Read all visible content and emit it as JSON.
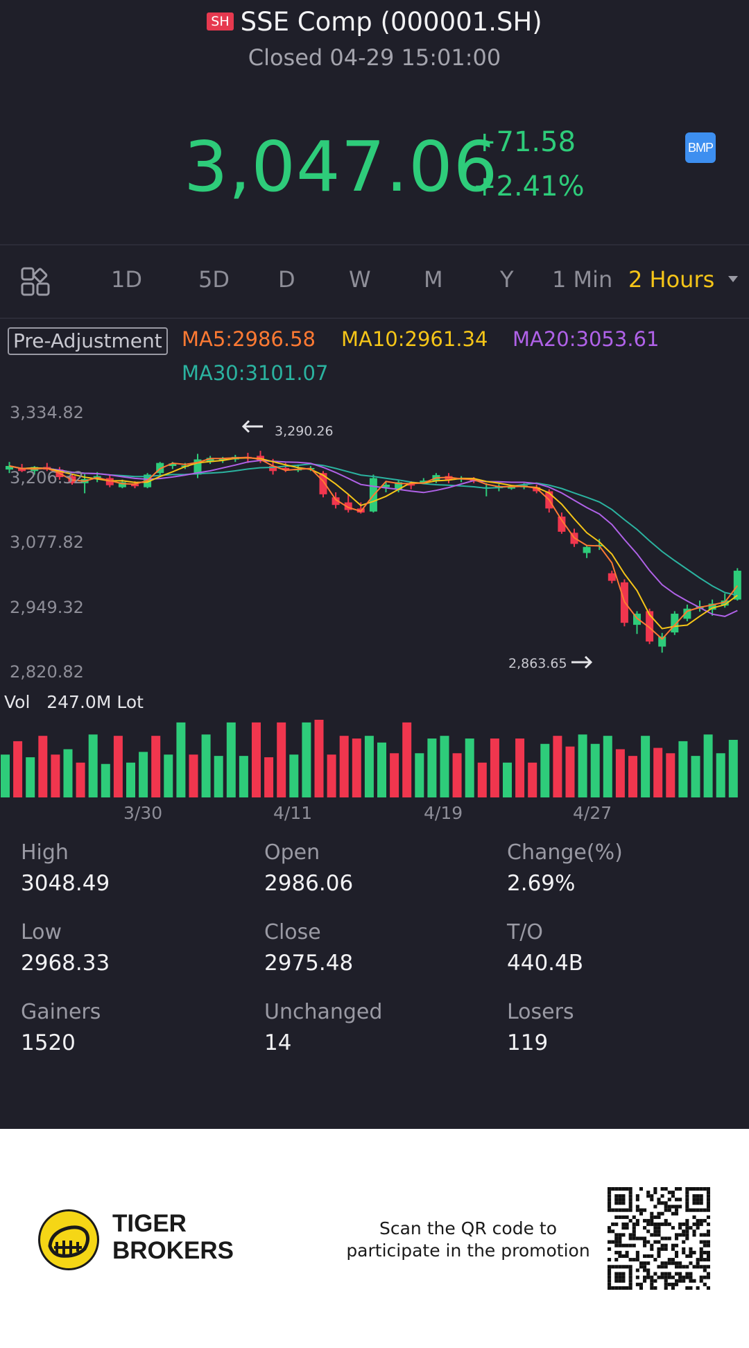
{
  "header": {
    "exchange_badge": "SH",
    "title": "SSE Comp (000001.SH)",
    "status": "Closed 04-29 15:01:00"
  },
  "quote": {
    "price": "3,047.06",
    "change": "+71.58",
    "change_pct": "+2.41%",
    "bmp_label": "BMP",
    "color_up": "#2ecc7a",
    "color_down": "#f0364e"
  },
  "tabs": {
    "items": [
      "1D",
      "5D",
      "D",
      "W",
      "M",
      "Y",
      "1 Min",
      "2 Hours"
    ],
    "active": "2 Hours",
    "icon": "grid-icon",
    "dropdown_icon": "caret-down-icon"
  },
  "indicators": {
    "adjustment": "Pre-Adjustment",
    "ma5": "MA5:2986.58",
    "ma10": "MA10:2961.34",
    "ma20": "MA20:3053.61",
    "ma30": "MA30:3101.07",
    "colors": {
      "ma5": "#ff7a33",
      "ma10": "#f5c518",
      "ma20": "#b062e8",
      "ma30": "#2bb3a0"
    }
  },
  "chart_data": {
    "type": "candlestick",
    "y_ticks": [
      "3,334.82",
      "3,206.32",
      "3,077.82",
      "2,949.32",
      "2,820.82"
    ],
    "ylim": [
      2820.82,
      3334.82
    ],
    "x_ticks": [
      "3/30",
      "4/11",
      "4/19",
      "4/27"
    ],
    "high_label": "3,290.26",
    "low_label": "2,863.65",
    "volume_label": "Vol",
    "volume_value": "247.0M Lot",
    "candles": [
      {
        "o": 3225,
        "h": 3240,
        "l": 3218,
        "c": 3232
      },
      {
        "o": 3228,
        "h": 3236,
        "l": 3220,
        "c": 3222
      },
      {
        "o": 3222,
        "h": 3232,
        "l": 3215,
        "c": 3230
      },
      {
        "o": 3230,
        "h": 3238,
        "l": 3222,
        "c": 3225
      },
      {
        "o": 3225,
        "h": 3230,
        "l": 3205,
        "c": 3210
      },
      {
        "o": 3212,
        "h": 3216,
        "l": 3195,
        "c": 3198
      },
      {
        "o": 3198,
        "h": 3216,
        "l": 3178,
        "c": 3206
      },
      {
        "o": 3206,
        "h": 3220,
        "l": 3200,
        "c": 3212
      },
      {
        "o": 3208,
        "h": 3214,
        "l": 3190,
        "c": 3194
      },
      {
        "o": 3190,
        "h": 3205,
        "l": 3188,
        "c": 3200
      },
      {
        "o": 3196,
        "h": 3202,
        "l": 3188,
        "c": 3192
      },
      {
        "o": 3190,
        "h": 3218,
        "l": 3188,
        "c": 3215
      },
      {
        "o": 3218,
        "h": 3240,
        "l": 3214,
        "c": 3238
      },
      {
        "o": 3232,
        "h": 3240,
        "l": 3226,
        "c": 3237
      },
      {
        "o": 3232,
        "h": 3238,
        "l": 3226,
        "c": 3233
      },
      {
        "o": 3215,
        "h": 3256,
        "l": 3208,
        "c": 3245
      },
      {
        "o": 3240,
        "h": 3252,
        "l": 3236,
        "c": 3248
      },
      {
        "o": 3244,
        "h": 3250,
        "l": 3238,
        "c": 3246
      },
      {
        "o": 3245,
        "h": 3254,
        "l": 3240,
        "c": 3250
      },
      {
        "o": 3250,
        "h": 3258,
        "l": 3238,
        "c": 3248
      },
      {
        "o": 3252,
        "h": 3262,
        "l": 3238,
        "c": 3242
      },
      {
        "o": 3232,
        "h": 3246,
        "l": 3215,
        "c": 3222
      },
      {
        "o": 3228,
        "h": 3238,
        "l": 3220,
        "c": 3225
      },
      {
        "o": 3225,
        "h": 3235,
        "l": 3220,
        "c": 3226
      },
      {
        "o": 3228,
        "h": 3232,
        "l": 3222,
        "c": 3228
      },
      {
        "o": 3218,
        "h": 3222,
        "l": 3170,
        "c": 3176
      },
      {
        "o": 3170,
        "h": 3180,
        "l": 3148,
        "c": 3155
      },
      {
        "o": 3160,
        "h": 3176,
        "l": 3140,
        "c": 3145
      },
      {
        "o": 3148,
        "h": 3160,
        "l": 3138,
        "c": 3140
      },
      {
        "o": 3142,
        "h": 3215,
        "l": 3140,
        "c": 3208
      },
      {
        "o": 3190,
        "h": 3202,
        "l": 3180,
        "c": 3195
      },
      {
        "o": 3185,
        "h": 3205,
        "l": 3180,
        "c": 3200
      },
      {
        "o": 3196,
        "h": 3202,
        "l": 3186,
        "c": 3194
      },
      {
        "o": 3198,
        "h": 3208,
        "l": 3196,
        "c": 3203
      },
      {
        "o": 3202,
        "h": 3218,
        "l": 3198,
        "c": 3214
      },
      {
        "o": 3212,
        "h": 3218,
        "l": 3198,
        "c": 3205
      },
      {
        "o": 3205,
        "h": 3212,
        "l": 3200,
        "c": 3208
      },
      {
        "o": 3205,
        "h": 3210,
        "l": 3198,
        "c": 3202
      },
      {
        "o": 3188,
        "h": 3198,
        "l": 3172,
        "c": 3190
      },
      {
        "o": 3188,
        "h": 3196,
        "l": 3182,
        "c": 3192
      },
      {
        "o": 3188,
        "h": 3194,
        "l": 3185,
        "c": 3190
      },
      {
        "o": 3190,
        "h": 3198,
        "l": 3186,
        "c": 3194
      },
      {
        "o": 3190,
        "h": 3195,
        "l": 3178,
        "c": 3182
      },
      {
        "o": 3182,
        "h": 3186,
        "l": 3140,
        "c": 3148
      },
      {
        "o": 3132,
        "h": 3140,
        "l": 3098,
        "c": 3102
      },
      {
        "o": 3100,
        "h": 3108,
        "l": 3072,
        "c": 3078
      },
      {
        "o": 3060,
        "h": 3075,
        "l": 3050,
        "c": 3072
      },
      {
        "o": 3075,
        "h": 3088,
        "l": 3066,
        "c": 3076
      },
      {
        "o": 3020,
        "h": 3025,
        "l": 3000,
        "c": 3005
      },
      {
        "o": 3002,
        "h": 3008,
        "l": 2915,
        "c": 2922
      },
      {
        "o": 2918,
        "h": 2945,
        "l": 2900,
        "c": 2940
      },
      {
        "o": 2945,
        "h": 2950,
        "l": 2880,
        "c": 2885
      },
      {
        "o": 2875,
        "h": 2902,
        "l": 2863,
        "c": 2895
      },
      {
        "o": 2903,
        "h": 2945,
        "l": 2898,
        "c": 2940
      },
      {
        "o": 2930,
        "h": 2958,
        "l": 2925,
        "c": 2950
      },
      {
        "o": 2950,
        "h": 2966,
        "l": 2944,
        "c": 2955
      },
      {
        "o": 2948,
        "h": 2968,
        "l": 2936,
        "c": 2960
      },
      {
        "o": 2956,
        "h": 2980,
        "l": 2952,
        "c": 2966
      },
      {
        "o": 2968,
        "h": 3030,
        "l": 2966,
        "c": 3025
      }
    ],
    "volumes": [
      {
        "v": 3.2,
        "up": true
      },
      {
        "v": 4.2,
        "up": false
      },
      {
        "v": 3.0,
        "up": true
      },
      {
        "v": 4.6,
        "up": false
      },
      {
        "v": 3.2,
        "up": false
      },
      {
        "v": 3.6,
        "up": true
      },
      {
        "v": 2.6,
        "up": false
      },
      {
        "v": 4.7,
        "up": true
      },
      {
        "v": 2.5,
        "up": true
      },
      {
        "v": 4.6,
        "up": false
      },
      {
        "v": 2.6,
        "up": true
      },
      {
        "v": 3.4,
        "up": true
      },
      {
        "v": 4.6,
        "up": false
      },
      {
        "v": 3.2,
        "up": true
      },
      {
        "v": 5.6,
        "up": true
      },
      {
        "v": 3.2,
        "up": false
      },
      {
        "v": 4.7,
        "up": true
      },
      {
        "v": 3.1,
        "up": true
      },
      {
        "v": 5.6,
        "up": true
      },
      {
        "v": 3.1,
        "up": true
      },
      {
        "v": 5.6,
        "up": false
      },
      {
        "v": 3.0,
        "up": false
      },
      {
        "v": 5.6,
        "up": false
      },
      {
        "v": 3.2,
        "up": true
      },
      {
        "v": 5.6,
        "up": true
      },
      {
        "v": 5.8,
        "up": false
      },
      {
        "v": 3.2,
        "up": false
      },
      {
        "v": 4.6,
        "up": false
      },
      {
        "v": 4.4,
        "up": false
      },
      {
        "v": 4.6,
        "up": true
      },
      {
        "v": 4.1,
        "up": true
      },
      {
        "v": 3.3,
        "up": false
      },
      {
        "v": 5.6,
        "up": false
      },
      {
        "v": 3.3,
        "up": true
      },
      {
        "v": 4.4,
        "up": true
      },
      {
        "v": 4.6,
        "up": true
      },
      {
        "v": 3.3,
        "up": false
      },
      {
        "v": 4.4,
        "up": true
      },
      {
        "v": 2.6,
        "up": false
      },
      {
        "v": 4.4,
        "up": false
      },
      {
        "v": 2.6,
        "up": true
      },
      {
        "v": 4.4,
        "up": false
      },
      {
        "v": 2.6,
        "up": false
      },
      {
        "v": 4.0,
        "up": true
      },
      {
        "v": 4.6,
        "up": false
      },
      {
        "v": 3.8,
        "up": false
      },
      {
        "v": 4.7,
        "up": true
      },
      {
        "v": 4.0,
        "up": true
      },
      {
        "v": 4.6,
        "up": true
      },
      {
        "v": 3.6,
        "up": false
      },
      {
        "v": 3.1,
        "up": false
      },
      {
        "v": 4.6,
        "up": true
      },
      {
        "v": 3.7,
        "up": false
      },
      {
        "v": 3.3,
        "up": false
      },
      {
        "v": 4.2,
        "up": true
      },
      {
        "v": 3.1,
        "up": true
      },
      {
        "v": 4.7,
        "up": true
      },
      {
        "v": 3.3,
        "up": true
      },
      {
        "v": 4.3,
        "up": true
      }
    ]
  },
  "stats": [
    {
      "label": "High",
      "value": "3048.49"
    },
    {
      "label": "Open",
      "value": "2986.06"
    },
    {
      "label": "Change(%)",
      "value": "2.69%"
    },
    {
      "label": "Low",
      "value": "2968.33"
    },
    {
      "label": "Close",
      "value": "2975.48"
    },
    {
      "label": "T/O",
      "value": "440.4B"
    },
    {
      "label": "Gainers",
      "value": "1520"
    },
    {
      "label": "Unchanged",
      "value": "14"
    },
    {
      "label": "Losers",
      "value": "119"
    }
  ],
  "footer": {
    "brand_line1": "TIGER",
    "brand_line2": "BROKERS",
    "promo_line1": "Scan the QR code to",
    "promo_line2": "participate in the promotion",
    "logo_icon": "tiger-logo-icon",
    "qr_icon": "qr-code-icon"
  }
}
